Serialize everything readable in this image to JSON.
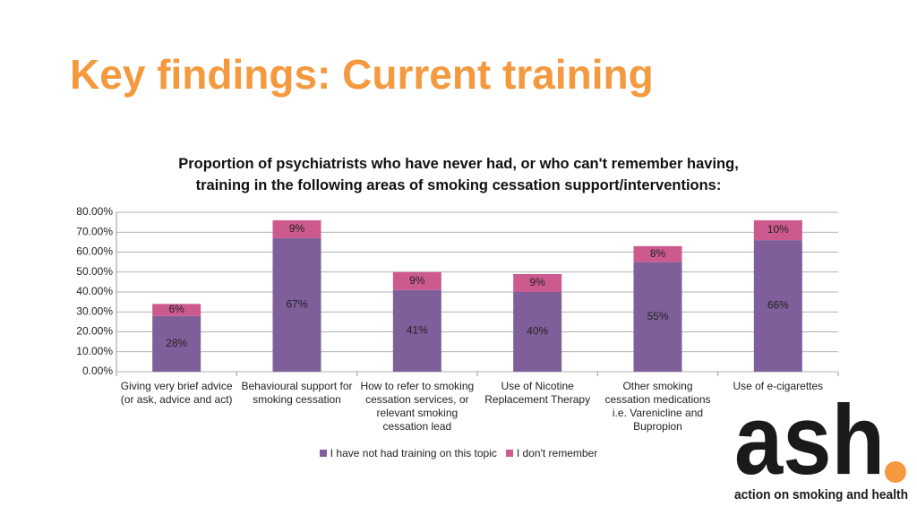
{
  "slide_title": "Key findings: Current training",
  "chart_data": {
    "type": "stacked_bar",
    "title": "Proportion of psychiatrists who have never had, or who can't remember having, training in the following areas of smoking cessation support/interventions:",
    "categories": [
      "Giving very brief advice (or ask, advice and act)",
      "Behavioural support for smoking cessation",
      "How to refer to smoking cessation services, or relevant smoking cessation lead",
      "Use of Nicotine Replacement Therapy",
      "Other smoking cessation medications i.e. Varenicline and Bupropion",
      "Use of e-cigarettes"
    ],
    "series": [
      {
        "name": "I have not had training on this topic",
        "color": "#7f5f99",
        "values": [
          28,
          67,
          41,
          40,
          55,
          66
        ],
        "value_labels": [
          "28%",
          "67%",
          "41%",
          "40%",
          "55%",
          "66%"
        ]
      },
      {
        "name": "I don't remember",
        "color": "#cc5a8f",
        "values": [
          6,
          9,
          9,
          9,
          8,
          10
        ],
        "value_labels": [
          "6%",
          "9%",
          "9%",
          "9%",
          "8%",
          "10%"
        ]
      }
    ],
    "ylim": [
      0,
      80
    ],
    "yticks": [
      {
        "value": 0,
        "label": "0.00%"
      },
      {
        "value": 10,
        "label": "10.00%"
      },
      {
        "value": 20,
        "label": "20.00%"
      },
      {
        "value": 30,
        "label": "30.00%"
      },
      {
        "value": 40,
        "label": "40.00%"
      },
      {
        "value": 50,
        "label": "50.00%"
      },
      {
        "value": 60,
        "label": "60.00%"
      },
      {
        "value": 70,
        "label": "70.00%"
      },
      {
        "value": 80,
        "label": "80.00%"
      }
    ],
    "grid": true,
    "legend": "bottom"
  },
  "logo": {
    "name": "ash",
    "tagline": "action on smoking and health"
  }
}
